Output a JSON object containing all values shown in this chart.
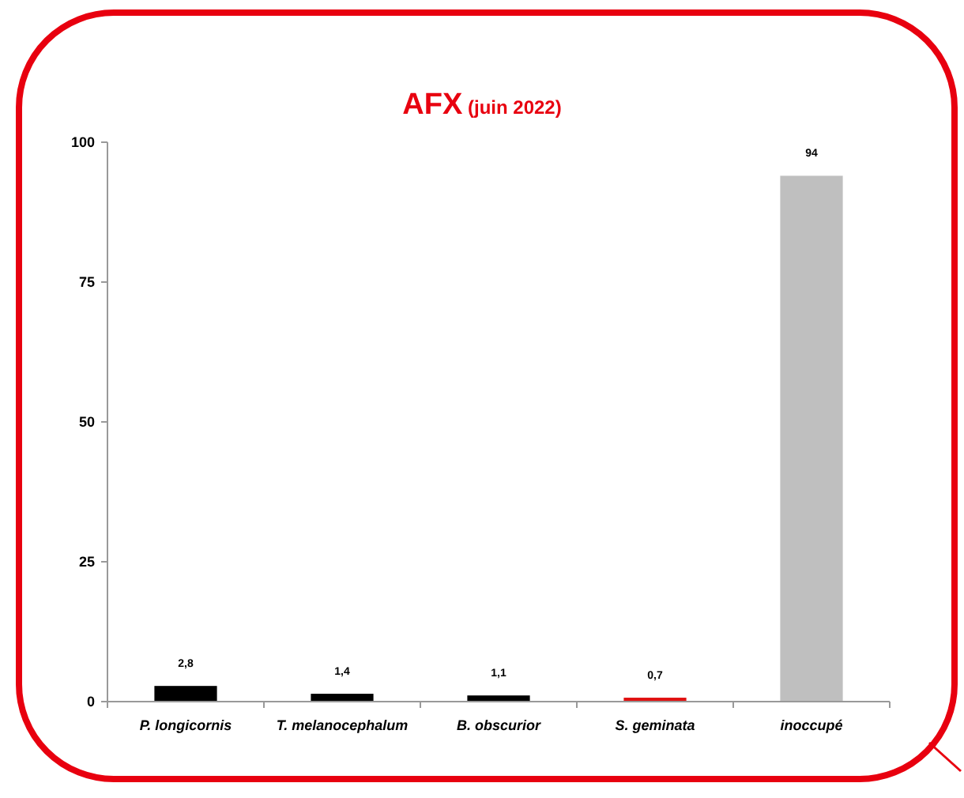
{
  "chart_data": {
    "type": "bar",
    "title": "AFX (juin 2022)",
    "categories": [
      "P. longicornis",
      "T. melanocephalum",
      "B. obscurior",
      "S. geminata",
      "inoccupé"
    ],
    "values": [
      2.8,
      1.4,
      1.1,
      0.7,
      94
    ],
    "colors": [
      "#000000",
      "#000000",
      "#000000",
      "#e01010",
      "#bfbfbf"
    ],
    "value_labels": [
      "2,8",
      "1,4",
      "1,1",
      "0,7",
      "94"
    ],
    "ylim": [
      0,
      100
    ],
    "yticks": [
      0,
      25,
      50,
      75,
      100
    ],
    "grid": false
  }
}
